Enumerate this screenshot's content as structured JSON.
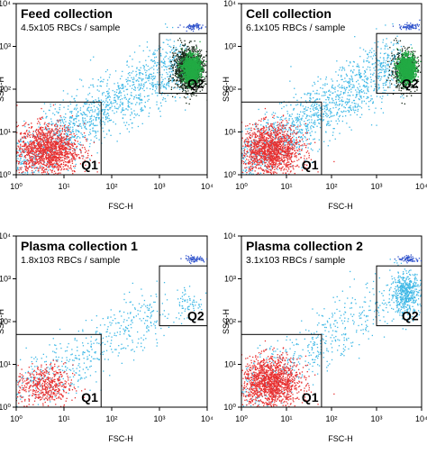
{
  "chart_data": [
    {
      "type": "scatter",
      "title": "Feed collection",
      "subtitle": "4.5x105  RBCs / sample",
      "xlabel": "FSC-H",
      "ylabel": "SSC-H",
      "x_scale": "log",
      "y_scale": "log",
      "xlim": [
        1,
        10000
      ],
      "ylim": [
        1,
        10000
      ],
      "x_tick_labels": [
        "10⁰",
        "10¹",
        "10²",
        "10³",
        "10⁴"
      ],
      "y_tick_labels": [
        "10⁰",
        "10¹",
        "10²",
        "10³",
        "10⁴"
      ],
      "gates": [
        {
          "label": "Q1",
          "x": [
            1,
            60
          ],
          "y": [
            1,
            50
          ]
        },
        {
          "label": "Q2",
          "x": [
            1000,
            10000
          ],
          "y": [
            80,
            2000
          ]
        }
      ],
      "populations": [
        {
          "color": "#3fb8e6",
          "x_range": [
            1,
            3000
          ],
          "y_range": [
            2,
            500
          ],
          "density": "high"
        },
        {
          "color": "#e83030",
          "x_range": [
            1,
            20
          ],
          "y_range": [
            1,
            15
          ],
          "density": "high"
        },
        {
          "color": "#1a2a1a",
          "x_range": [
            2000,
            8000
          ],
          "y_range": [
            100,
            900
          ],
          "density": "high"
        },
        {
          "color": "#22aa44",
          "x_range": [
            3000,
            7000
          ],
          "y_range": [
            150,
            600
          ],
          "density": "high"
        },
        {
          "color": "#3355cc",
          "x_range": [
            3000,
            9000
          ],
          "y_range": [
            2500,
            3500
          ],
          "density": "low"
        }
      ]
    },
    {
      "type": "scatter",
      "title": "Cell collection",
      "subtitle": "6.1x105  RBCs / sample",
      "xlabel": "FSC-H",
      "ylabel": "SSC-H",
      "x_scale": "log",
      "y_scale": "log",
      "xlim": [
        1,
        10000
      ],
      "ylim": [
        1,
        10000
      ],
      "x_tick_labels": [
        "10⁰",
        "10¹",
        "10²",
        "10³",
        "10⁴"
      ],
      "y_tick_labels": [
        "10⁰",
        "10¹",
        "10²",
        "10³",
        "10⁴"
      ],
      "gates": [
        {
          "label": "Q1",
          "x": [
            1,
            60
          ],
          "y": [
            1,
            50
          ]
        },
        {
          "label": "Q2",
          "x": [
            1000,
            10000
          ],
          "y": [
            80,
            2000
          ]
        }
      ],
      "populations": [
        {
          "color": "#3fb8e6",
          "x_range": [
            1,
            3000
          ],
          "y_range": [
            2,
            500
          ],
          "density": "high"
        },
        {
          "color": "#e83030",
          "x_range": [
            1,
            20
          ],
          "y_range": [
            1,
            15
          ],
          "density": "high"
        },
        {
          "color": "#1a2a1a",
          "x_range": [
            2000,
            8000
          ],
          "y_range": [
            100,
            900
          ],
          "density": "medium"
        },
        {
          "color": "#22aa44",
          "x_range": [
            3000,
            7000
          ],
          "y_range": [
            150,
            600
          ],
          "density": "high"
        },
        {
          "color": "#3355cc",
          "x_range": [
            3000,
            9000
          ],
          "y_range": [
            2500,
            3500
          ],
          "density": "low"
        }
      ]
    },
    {
      "type": "scatter",
      "title": "Plasma collection 1",
      "subtitle": "1.8x103  RBCs / sample",
      "xlabel": "FSC-H",
      "ylabel": "SSC-H",
      "x_scale": "log",
      "y_scale": "log",
      "xlim": [
        1,
        10000
      ],
      "ylim": [
        1,
        10000
      ],
      "x_tick_labels": [
        "10⁰",
        "10¹",
        "10²",
        "10³",
        "10⁴"
      ],
      "y_tick_labels": [
        "10⁰",
        "10¹",
        "10²",
        "10³",
        "10⁴"
      ],
      "gates": [
        {
          "label": "Q1",
          "x": [
            1,
            60
          ],
          "y": [
            1,
            50
          ]
        },
        {
          "label": "Q2",
          "x": [
            1000,
            10000
          ],
          "y": [
            80,
            2000
          ]
        }
      ],
      "populations": [
        {
          "color": "#3fb8e6",
          "x_range": [
            1,
            1000
          ],
          "y_range": [
            2,
            200
          ],
          "density": "medium"
        },
        {
          "color": "#e83030",
          "x_range": [
            1,
            15
          ],
          "y_range": [
            1,
            10
          ],
          "density": "medium"
        },
        {
          "color": "#3fb8e6",
          "x_range": [
            2000,
            8000
          ],
          "y_range": [
            100,
            800
          ],
          "density": "low"
        },
        {
          "color": "#3355cc",
          "x_range": [
            3000,
            9000
          ],
          "y_range": [
            2500,
            3500
          ],
          "density": "low"
        }
      ]
    },
    {
      "type": "scatter",
      "title": "Plasma collection 2",
      "subtitle": "3.1x103  RBCs / sample",
      "xlabel": "FSC-H",
      "ylabel": "SSC-H",
      "x_scale": "log",
      "y_scale": "log",
      "xlim": [
        1,
        10000
      ],
      "ylim": [
        1,
        10000
      ],
      "x_tick_labels": [
        "10⁰",
        "10¹",
        "10²",
        "10³",
        "10⁴"
      ],
      "y_tick_labels": [
        "10⁰",
        "10¹",
        "10²",
        "10³",
        "10⁴"
      ],
      "gates": [
        {
          "label": "Q1",
          "x": [
            1,
            60
          ],
          "y": [
            1,
            50
          ]
        },
        {
          "label": "Q2",
          "x": [
            1000,
            10000
          ],
          "y": [
            80,
            2000
          ]
        }
      ],
      "populations": [
        {
          "color": "#3fb8e6",
          "x_range": [
            1,
            1500
          ],
          "y_range": [
            2,
            300
          ],
          "density": "medium"
        },
        {
          "color": "#e83030",
          "x_range": [
            1,
            20
          ],
          "y_range": [
            1,
            15
          ],
          "density": "high"
        },
        {
          "color": "#3fb8e6",
          "x_range": [
            2000,
            9000
          ],
          "y_range": [
            150,
            1500
          ],
          "density": "medium"
        },
        {
          "color": "#3355cc",
          "x_range": [
            3000,
            9000
          ],
          "y_range": [
            2500,
            3500
          ],
          "density": "low"
        }
      ]
    }
  ]
}
